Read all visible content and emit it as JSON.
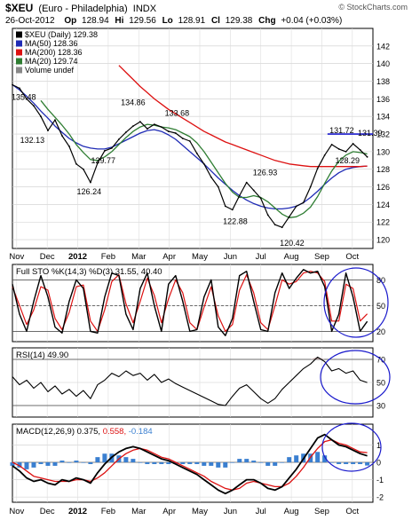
{
  "header": {
    "symbol": "$XEU",
    "name": "(Euro - Philadelphia)",
    "exchange": "INDX",
    "watermark": "© StockCharts.com",
    "date": "26-Oct-2012",
    "open_label": "Op",
    "open": "128.94",
    "high_label": "Hi",
    "high": "129.56",
    "low_label": "Lo",
    "low": "128.91",
    "close_label": "Cl",
    "close": "129.38",
    "change_label": "Chg",
    "change": "+0.04 (+0.03%)"
  },
  "legend": [
    {
      "label": "$XEU (Daily) 129.38",
      "color": "#000000"
    },
    {
      "label": "MA(50) 128.36",
      "color": "#1f2bb5"
    },
    {
      "label": "MA(200) 128.36",
      "color": "#dd1111"
    },
    {
      "label": "MA(20) 129.74",
      "color": "#2e7d32"
    },
    {
      "label": "Volume undef",
      "color": "#888888"
    }
  ],
  "colors": {
    "price": "#000000",
    "ma50": "#1f2bb5",
    "ma200": "#dd1111",
    "ma20": "#2e7d32",
    "oscillator_fast": "#000000",
    "oscillator_slow": "#dd1111",
    "histogram": "#3a7fd0",
    "highlight": "#1a1acc",
    "rsi_fill": "#b9a0a0",
    "rsi_fill_low": "#7d6b6b"
  },
  "chart_data": [
    {
      "type": "line",
      "panel": "price",
      "ylim": [
        119,
        144
      ],
      "y_ticks": [
        120,
        122,
        124,
        126,
        128,
        130,
        132,
        134,
        136,
        138,
        140,
        142
      ],
      "x_ticks": [
        "Nov",
        "Dec",
        "2012",
        "Feb",
        "Mar",
        "Apr",
        "May",
        "Jun",
        "Jul",
        "Aug",
        "Sep",
        "Oct"
      ],
      "x": [
        0,
        5,
        10,
        15,
        20,
        25,
        30,
        35,
        40,
        45,
        50,
        55,
        60,
        65,
        70,
        75,
        80,
        85,
        90,
        95,
        100,
        105,
        110,
        115,
        120,
        125,
        130,
        135,
        140,
        145,
        150,
        155,
        160,
        165,
        170,
        175,
        180,
        185,
        190,
        195,
        200,
        205,
        210,
        215,
        220,
        225,
        230,
        235,
        240,
        245,
        250
      ],
      "series": [
        {
          "name": "$XEU (Daily)",
          "values": [
            137.6,
            137.2,
            136.0,
            135.2,
            134.0,
            132.4,
            133.6,
            131.8,
            130.6,
            128.6,
            128.0,
            126.5,
            128.7,
            130.1,
            130.4,
            131.4,
            132.2,
            132.9,
            133.4,
            132.6,
            133.1,
            132.8,
            132.3,
            132.1,
            131.5,
            131.2,
            129.8,
            128.6,
            127.1,
            126.0,
            123.8,
            123.4,
            125.0,
            126.5,
            125.6,
            124.7,
            122.8,
            121.7,
            121.4,
            122.6,
            123.8,
            124.2,
            126.0,
            128.1,
            129.6,
            130.8,
            130.3,
            130.0,
            130.9,
            130.2,
            129.4
          ]
        },
        {
          "name": "MA(50)",
          "values": [
            137.6,
            137.0,
            136.3,
            135.5,
            134.6,
            133.8,
            132.9,
            132.2,
            131.5,
            131.0,
            130.6,
            130.4,
            130.3,
            130.3,
            130.5,
            130.9,
            131.3,
            131.7,
            132.1,
            132.4,
            132.5,
            132.3,
            131.9,
            131.4,
            130.7,
            130.0,
            129.3,
            128.6,
            127.8,
            127.0,
            126.3,
            125.6,
            125.0,
            124.5,
            124.1,
            123.8,
            123.6,
            123.5,
            123.5,
            123.6,
            123.8,
            124.2,
            124.8,
            125.5,
            126.3,
            127.0,
            127.6,
            128.0,
            128.2,
            128.3,
            128.36
          ]
        },
        {
          "name": "MA(200)",
          "values": [
            null,
            null,
            null,
            null,
            null,
            null,
            null,
            null,
            null,
            null,
            null,
            null,
            null,
            null,
            null,
            139.8,
            139.0,
            138.2,
            137.4,
            136.7,
            136.0,
            135.4,
            134.8,
            134.3,
            133.8,
            133.3,
            132.8,
            132.3,
            131.9,
            131.5,
            131.1,
            130.8,
            130.5,
            130.2,
            129.9,
            129.6,
            129.3,
            129.0,
            128.8,
            128.6,
            128.5,
            128.4,
            128.3,
            128.3,
            128.3,
            128.3,
            128.3,
            128.3,
            128.3,
            128.3,
            128.36
          ]
        },
        {
          "name": "MA(20)",
          "values": [
            null,
            null,
            null,
            null,
            135.8,
            134.8,
            133.9,
            133.0,
            132.0,
            130.8,
            129.9,
            129.1,
            129.0,
            129.4,
            130.0,
            130.8,
            131.6,
            132.3,
            132.8,
            133.1,
            133.0,
            132.8,
            132.7,
            132.5,
            132.1,
            131.7,
            131.0,
            130.0,
            128.8,
            127.6,
            126.4,
            125.4,
            124.8,
            124.8,
            125.0,
            124.8,
            124.3,
            123.6,
            122.9,
            122.5,
            122.6,
            123.0,
            123.7,
            124.9,
            126.4,
            127.8,
            128.9,
            129.6,
            130.0,
            129.9,
            129.74
          ]
        }
      ],
      "annotations": [
        {
          "label": "135.48",
          "x": 8,
          "y": 135.48,
          "pos": "above"
        },
        {
          "label": "132.13",
          "x": 14,
          "y": 132.13,
          "pos": "below"
        },
        {
          "label": "126.24",
          "x": 54,
          "y": 126.24,
          "pos": "below"
        },
        {
          "label": "134.86",
          "x": 85,
          "y": 134.86,
          "pos": "above"
        },
        {
          "label": "129.77",
          "x": 64,
          "y": 129.77,
          "pos": "below"
        },
        {
          "label": "133.68",
          "x": 116,
          "y": 133.68,
          "pos": "above"
        },
        {
          "label": "122.88",
          "x": 157,
          "y": 122.88,
          "pos": "below"
        },
        {
          "label": "126.93",
          "x": 178,
          "y": 126.93,
          "pos": "above"
        },
        {
          "label": "120.42",
          "x": 197,
          "y": 120.42,
          "pos": "below"
        },
        {
          "label": "131.72",
          "x": 232,
          "y": 131.72,
          "pos": "above"
        },
        {
          "label": "131.39",
          "x": 252,
          "y": 131.39,
          "pos": "above"
        },
        {
          "label": "128.29",
          "x": 236,
          "y": 128.29,
          "pos": "above"
        }
      ]
    },
    {
      "type": "line",
      "panel": "stochastic",
      "label": "Full STO %K(14,3) %D(3) 31.55, 40.40",
      "label_values": "31.55, 40.40",
      "ylim": [
        8,
        98
      ],
      "y_ticks": [
        20,
        50,
        80
      ],
      "x": [
        0,
        5,
        10,
        15,
        20,
        25,
        30,
        35,
        40,
        45,
        50,
        55,
        60,
        65,
        70,
        75,
        80,
        85,
        90,
        95,
        100,
        105,
        110,
        115,
        120,
        125,
        130,
        135,
        140,
        145,
        150,
        155,
        160,
        165,
        170,
        175,
        180,
        185,
        190,
        195,
        200,
        205,
        210,
        215,
        220,
        225,
        230,
        235,
        240,
        245,
        250
      ],
      "series": [
        {
          "name": "%K(14,3)",
          "values": [
            75,
            40,
            20,
            55,
            85,
            60,
            25,
            18,
            55,
            80,
            70,
            20,
            18,
            60,
            88,
            85,
            40,
            22,
            70,
            88,
            50,
            20,
            75,
            85,
            55,
            20,
            22,
            60,
            80,
            25,
            15,
            35,
            85,
            90,
            55,
            22,
            20,
            65,
            88,
            70,
            82,
            92,
            88,
            90,
            72,
            20,
            40,
            88,
            60,
            20,
            31.55
          ]
        },
        {
          "name": "%D(3)",
          "values": [
            72,
            50,
            28,
            45,
            72,
            68,
            35,
            22,
            42,
            72,
            74,
            32,
            20,
            45,
            78,
            86,
            52,
            30,
            55,
            82,
            62,
            30,
            58,
            80,
            65,
            30,
            22,
            48,
            72,
            38,
            20,
            28,
            68,
            86,
            65,
            30,
            22,
            50,
            80,
            75,
            78,
            88,
            90,
            88,
            78,
            32,
            32,
            75,
            70,
            32,
            40.4
          ]
        }
      ]
    },
    {
      "type": "area",
      "panel": "rsi",
      "label": "RSI(14) 49.90",
      "label_value": "49.90",
      "ylim": [
        20,
        80
      ],
      "y_ticks": [
        30,
        50,
        70
      ],
      "x": [
        0,
        5,
        10,
        15,
        20,
        25,
        30,
        35,
        40,
        45,
        50,
        55,
        60,
        65,
        70,
        75,
        80,
        85,
        90,
        95,
        100,
        105,
        110,
        115,
        120,
        125,
        130,
        135,
        140,
        145,
        150,
        155,
        160,
        165,
        170,
        175,
        180,
        185,
        190,
        195,
        200,
        205,
        210,
        215,
        220,
        225,
        230,
        235,
        240,
        245,
        250
      ],
      "series": [
        {
          "name": "RSI(14)",
          "values": [
            55,
            48,
            52,
            45,
            50,
            42,
            47,
            40,
            44,
            38,
            43,
            36,
            48,
            52,
            58,
            55,
            60,
            56,
            58,
            52,
            57,
            50,
            53,
            49,
            46,
            43,
            40,
            37,
            34,
            31,
            30,
            38,
            45,
            48,
            42,
            36,
            32,
            36,
            44,
            50,
            56,
            62,
            66,
            72,
            68,
            60,
            62,
            58,
            60,
            52,
            49.9
          ]
        }
      ]
    },
    {
      "type": "line",
      "panel": "macd",
      "label": "MACD(12,26,9) 0.375, 0.558, -0.184",
      "label_values": [
        "0.375",
        "0.558",
        "-0.184"
      ],
      "ylim": [
        -2.3,
        2.2
      ],
      "y_ticks": [
        -2,
        -1,
        0,
        1
      ],
      "x": [
        0,
        5,
        10,
        15,
        20,
        25,
        30,
        35,
        40,
        45,
        50,
        55,
        60,
        65,
        70,
        75,
        80,
        85,
        90,
        95,
        100,
        105,
        110,
        115,
        120,
        125,
        130,
        135,
        140,
        145,
        150,
        155,
        160,
        165,
        170,
        175,
        180,
        185,
        190,
        195,
        200,
        205,
        210,
        215,
        220,
        225,
        230,
        235,
        240,
        245,
        250
      ],
      "series": [
        {
          "name": "MACD",
          "values": [
            -0.2,
            -0.5,
            -0.9,
            -1.1,
            -1.0,
            -1.2,
            -1.3,
            -1.0,
            -1.1,
            -0.9,
            -1.0,
            -1.2,
            -0.6,
            -0.1,
            0.3,
            0.6,
            0.8,
            0.9,
            0.8,
            0.6,
            0.4,
            0.2,
            0.1,
            -0.1,
            -0.3,
            -0.5,
            -0.7,
            -1.0,
            -1.3,
            -1.6,
            -1.8,
            -1.6,
            -1.3,
            -1.0,
            -1.0,
            -1.2,
            -1.5,
            -1.6,
            -1.4,
            -0.9,
            -0.4,
            0.2,
            0.8,
            1.4,
            1.6,
            1.3,
            1.0,
            0.9,
            0.7,
            0.5,
            0.375
          ]
        },
        {
          "name": "Signal",
          "values": [
            0.0,
            -0.2,
            -0.5,
            -0.8,
            -0.9,
            -1.0,
            -1.1,
            -1.1,
            -1.1,
            -1.0,
            -1.0,
            -1.1,
            -0.9,
            -0.6,
            -0.2,
            0.2,
            0.5,
            0.7,
            0.8,
            0.7,
            0.5,
            0.3,
            0.2,
            0.0,
            -0.2,
            -0.4,
            -0.6,
            -0.8,
            -1.1,
            -1.3,
            -1.5,
            -1.6,
            -1.5,
            -1.2,
            -1.1,
            -1.2,
            -1.3,
            -1.4,
            -1.4,
            -1.2,
            -0.8,
            -0.3,
            0.3,
            0.8,
            1.2,
            1.3,
            1.1,
            1.0,
            0.8,
            0.6,
            0.558
          ]
        },
        {
          "name": "Histogram",
          "values": [
            -0.2,
            -0.3,
            -0.4,
            -0.3,
            -0.1,
            -0.2,
            -0.2,
            0.1,
            0.0,
            0.1,
            0.0,
            -0.1,
            0.3,
            0.5,
            0.5,
            0.4,
            0.3,
            0.2,
            0.0,
            -0.1,
            -0.1,
            -0.1,
            -0.1,
            -0.1,
            -0.1,
            -0.1,
            -0.1,
            -0.2,
            -0.2,
            -0.3,
            -0.3,
            0.0,
            0.2,
            0.2,
            0.1,
            0.0,
            -0.2,
            -0.2,
            0.0,
            0.3,
            0.4,
            0.5,
            0.5,
            0.6,
            0.4,
            0.0,
            -0.1,
            -0.1,
            -0.1,
            -0.1,
            -0.184
          ]
        }
      ]
    }
  ]
}
